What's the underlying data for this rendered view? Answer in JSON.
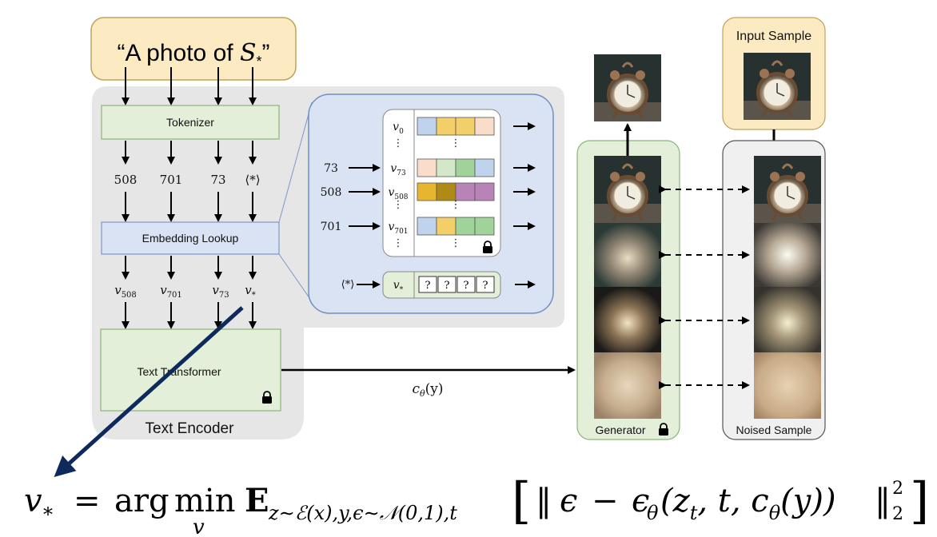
{
  "prompt": {
    "quote_open": "“A photo of ",
    "symbol": "S",
    "subscript": "*",
    "quote_close": "”"
  },
  "tokenizer_label": "Tokenizer",
  "tokens": [
    "508",
    "701",
    "73",
    "⟨*⟩"
  ],
  "embedding_label": "Embedding Lookup",
  "embeddings": [
    {
      "base": "v",
      "sub": "508"
    },
    {
      "base": "v",
      "sub": "701"
    },
    {
      "base": "v",
      "sub": "73"
    },
    {
      "base": "v",
      "sub": "*"
    }
  ],
  "transformer_label": "Text Transformer",
  "encoder_label": "Text Encoder",
  "conditioning": {
    "c": "c",
    "theta": "θ",
    "arg": "(y)"
  },
  "lookup_table": {
    "rows": [
      {
        "input": "",
        "base": "v",
        "sub": "0",
        "colors": [
          "#bfd3ec",
          "#f2cf68",
          "#f2cf68",
          "#f9dcc9"
        ]
      },
      {
        "input": "73",
        "base": "v",
        "sub": "73",
        "colors": [
          "#f9dcc9",
          "#d2e8c9",
          "#9fd39a",
          "#bfd3ec"
        ]
      },
      {
        "input": "508",
        "base": "v",
        "sub": "508",
        "colors": [
          "#e7b52f",
          "#b08a16",
          "#b883b6",
          "#b883b6"
        ]
      },
      {
        "input": "701",
        "base": "v",
        "sub": "701",
        "colors": [
          "#bfd3ec",
          "#f2cf68",
          "#9fd39a",
          "#9fd39a"
        ]
      }
    ],
    "dots": "⋮",
    "new_token": {
      "input": "⟨*⟩",
      "base": "v",
      "sub": "*",
      "cells": [
        "?",
        "?",
        "?",
        "?"
      ]
    }
  },
  "generator_label": "Generator",
  "input_sample_label": "Input Sample",
  "noised_label": "Noised Sample",
  "icons": [
    "lock-icon",
    "clock-image"
  ],
  "colors": {
    "prompt_fill": "#fcebc2",
    "encoder_fill": "#e5e5e5",
    "green_fill": "#e3efd9",
    "blue_fill": "#dae3f3",
    "navy_arrow": "#0e2a5c"
  }
}
